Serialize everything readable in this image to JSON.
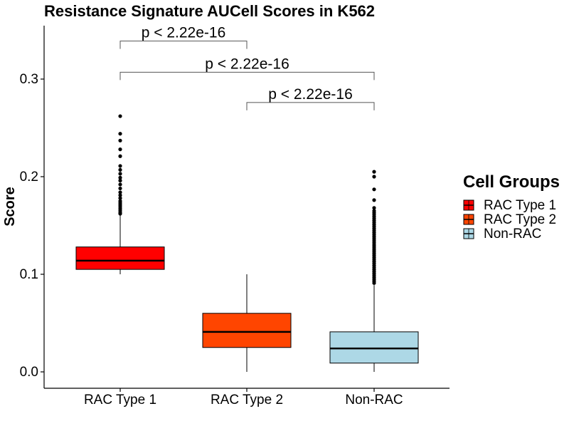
{
  "chart_data": {
    "type": "boxplot",
    "title": "Resistance Signature AUCell Scores in K562",
    "xlabel": "",
    "ylabel": "Score",
    "ylim": [
      -0.016,
      0.355
    ],
    "yticks": [
      "0.0",
      "0.1",
      "0.2",
      "0.3"
    ],
    "ytick_values": [
      0.0,
      0.1,
      0.2,
      0.3
    ],
    "categories": [
      "RAC Type 1",
      "RAC Type 2",
      "Non-RAC"
    ],
    "groups": [
      {
        "name": "RAC Type 1",
        "color": "#ff0000",
        "min": 0.1,
        "q1": 0.105,
        "median": 0.114,
        "q3": 0.128,
        "max": 0.161,
        "outliers": [
          0.162,
          0.163,
          0.165,
          0.167,
          0.169,
          0.171,
          0.173,
          0.175,
          0.178,
          0.181,
          0.184,
          0.188,
          0.192,
          0.196,
          0.199,
          0.203,
          0.207,
          0.211,
          0.221,
          0.228,
          0.237,
          0.244,
          0.262
        ]
      },
      {
        "name": "RAC Type 2",
        "color": "#ff4500",
        "min": 0.0,
        "q1": 0.025,
        "median": 0.041,
        "q3": 0.06,
        "max": 0.1,
        "outliers": []
      },
      {
        "name": "Non-RAC",
        "color": "#add8e6",
        "min": 0.0,
        "q1": 0.009,
        "median": 0.024,
        "q3": 0.041,
        "max": 0.089,
        "outliers": [
          0.091,
          0.093,
          0.095,
          0.097,
          0.099,
          0.101,
          0.103,
          0.105,
          0.107,
          0.109,
          0.111,
          0.113,
          0.115,
          0.117,
          0.119,
          0.121,
          0.123,
          0.125,
          0.127,
          0.129,
          0.131,
          0.133,
          0.135,
          0.137,
          0.139,
          0.141,
          0.143,
          0.145,
          0.147,
          0.149,
          0.151,
          0.153,
          0.155,
          0.157,
          0.159,
          0.161,
          0.163,
          0.165,
          0.168,
          0.176,
          0.187,
          0.2,
          0.205
        ]
      }
    ],
    "comparisons": [
      {
        "from": "RAC Type 1",
        "to": "RAC Type 2",
        "label": "p < 2.22e-16",
        "y": 0.339
      },
      {
        "from": "RAC Type 1",
        "to": "Non-RAC",
        "label": "p < 2.22e-16",
        "y": 0.307
      },
      {
        "from": "RAC Type 2",
        "to": "Non-RAC",
        "label": "p < 2.22e-16",
        "y": 0.276
      }
    ],
    "legend": {
      "title": "Cell Groups",
      "position": "right",
      "items": [
        {
          "label": "RAC Type 1",
          "color": "#ff0000"
        },
        {
          "label": "RAC Type 2",
          "color": "#ff4500"
        },
        {
          "label": "Non-RAC",
          "color": "#add8e6"
        }
      ]
    },
    "grid": false
  }
}
